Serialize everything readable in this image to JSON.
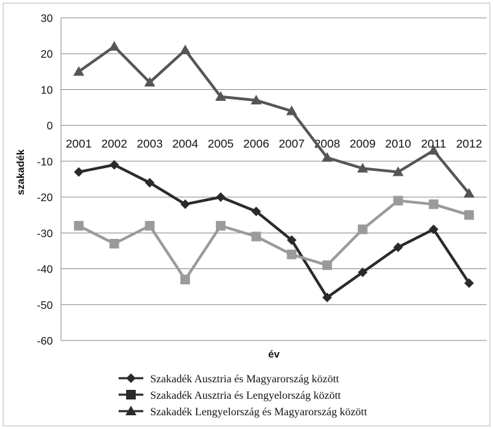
{
  "chart_data": {
    "type": "line",
    "title": "",
    "xlabel": "év",
    "ylabel": "szakadék",
    "ylim": [
      -60,
      30
    ],
    "yticks": [
      30,
      20,
      10,
      0,
      -10,
      -20,
      -30,
      -40,
      -50,
      -60
    ],
    "grid": true,
    "legend_position": "bottom",
    "categories": [
      "2001",
      "2002",
      "2003",
      "2004",
      "2005",
      "2006",
      "2007",
      "2008",
      "2009",
      "2010",
      "2011",
      "2012"
    ],
    "series": [
      {
        "name": "Szakadék Ausztria és Magyarország között",
        "marker": "diamond",
        "color": "#2a2a2a",
        "values": [
          -13,
          -11,
          -16,
          -22,
          -20,
          -24,
          -32,
          -48,
          -41,
          -34,
          -29,
          -44
        ]
      },
      {
        "name": "Szakadék Ausztria és Lengyelország között",
        "marker": "square",
        "color": "#9a9a9a",
        "values": [
          -28,
          -33,
          -28,
          -43,
          -28,
          -31,
          -36,
          -39,
          -29,
          -21,
          -22,
          -25
        ]
      },
      {
        "name": "Szakadék Lengyelország és Magyarország között",
        "marker": "triangle",
        "color": "#555555",
        "values": [
          15,
          22,
          12,
          21,
          8,
          7,
          4,
          -9,
          -12,
          -13,
          -7,
          -19
        ]
      }
    ]
  }
}
